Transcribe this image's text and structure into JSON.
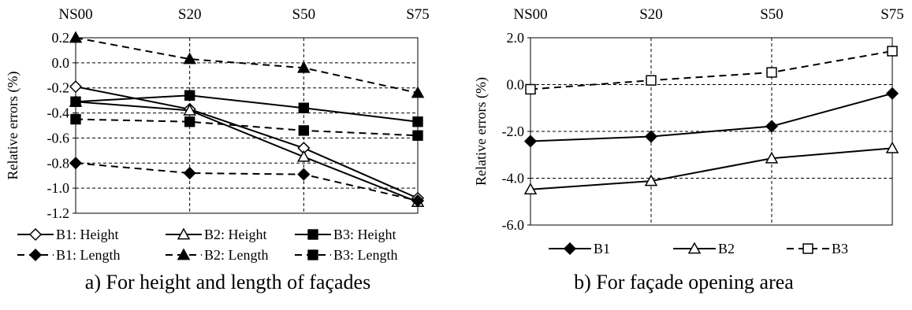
{
  "chart_data": [
    {
      "type": "line",
      "categories": [
        "NS00",
        "S20",
        "S50",
        "S75"
      ],
      "ylabel": "Relative errors  (%)",
      "ylim": [
        -1.2,
        0.2
      ],
      "yticks": [
        0.2,
        0.0,
        -0.2,
        -0.4,
        -0.6,
        -0.8,
        -1.0,
        -1.2
      ],
      "ytick_labels": [
        "0.2",
        "0.0",
        "-0.2",
        "-0.4",
        "-0.6",
        "-0.8",
        "-1.0",
        "-1.2"
      ],
      "grid": true,
      "legend_position": "bottom",
      "series": [
        {
          "name": "B1: Height",
          "values": [
            -0.19,
            -0.37,
            -0.68,
            -1.08
          ],
          "marker": "diamond-open",
          "dashed": false
        },
        {
          "name": "B2: Height",
          "values": [
            -0.31,
            -0.38,
            -0.75,
            -1.11
          ],
          "marker": "triangle-open",
          "dashed": false
        },
        {
          "name": "B3: Height",
          "values": [
            -0.31,
            -0.26,
            -0.36,
            -0.47
          ],
          "marker": "square-filled",
          "dashed": false
        },
        {
          "name": "B1: Length",
          "values": [
            -0.8,
            -0.88,
            -0.89,
            -1.1
          ],
          "marker": "diamond-filled",
          "dashed": true
        },
        {
          "name": "B2: Length",
          "values": [
            0.2,
            0.03,
            -0.04,
            -0.24
          ],
          "marker": "triangle-filled",
          "dashed": true
        },
        {
          "name": "B3: Length",
          "values": [
            -0.45,
            -0.47,
            -0.54,
            -0.58
          ],
          "marker": "square-filled",
          "dashed": true
        }
      ],
      "caption": "a) For height and length of façades"
    },
    {
      "type": "line",
      "categories": [
        "NS00",
        "S20",
        "S50",
        "S75"
      ],
      "ylabel": "Relative errors  (%)",
      "ylim": [
        -6.0,
        2.0
      ],
      "yticks": [
        2.0,
        0.0,
        -2.0,
        -4.0,
        -6.0
      ],
      "ytick_labels": [
        "2.0",
        "0.0",
        "-2.0",
        "-4.0",
        "-6.0"
      ],
      "grid": true,
      "legend_position": "bottom",
      "series": [
        {
          "name": "B1",
          "values": [
            -2.42,
            -2.22,
            -1.78,
            -0.38
          ],
          "marker": "diamond-filled",
          "dashed": false
        },
        {
          "name": "B2",
          "values": [
            -4.48,
            -4.12,
            -3.15,
            -2.72
          ],
          "marker": "triangle-open",
          "dashed": false
        },
        {
          "name": "B3",
          "values": [
            -0.2,
            0.18,
            0.52,
            1.43
          ],
          "marker": "square-open",
          "dashed": true
        }
      ],
      "caption": "b) For façade opening area"
    }
  ]
}
